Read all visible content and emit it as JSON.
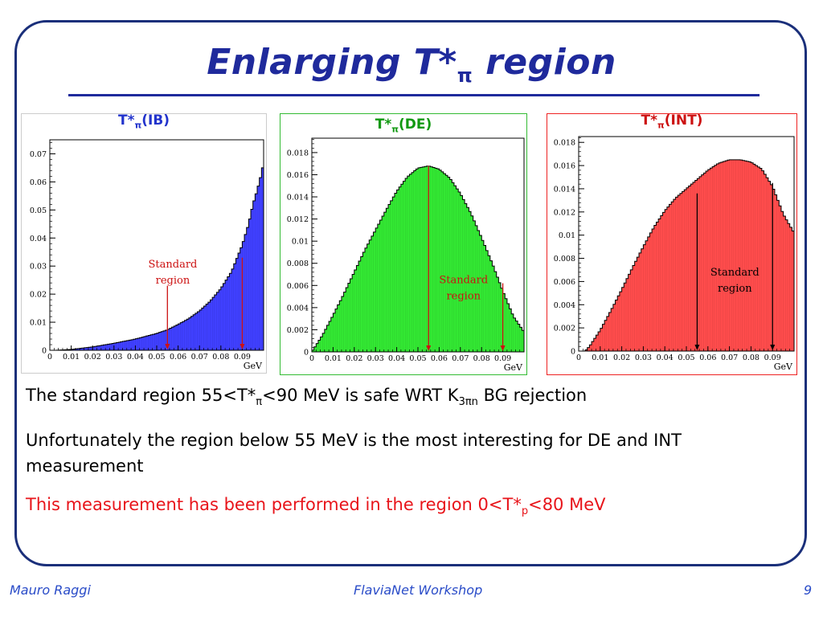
{
  "slide": {
    "title_main": "Enlarging T*",
    "title_sub": "π",
    "title_end": " region",
    "bullet1": {
      "a": "The standard region 55<T*",
      "sub": "π",
      "b": "<90 MeV is safe WRT K",
      "k_sub": "3πn",
      "c": " BG rejection"
    },
    "bullet2": "Unfortunately the region below 55 MeV is the most interesting for DE and INT measurement",
    "bullet3": {
      "a": "This measurement has been performed in the region 0<T*",
      "sub": "p",
      "b": "<80 MeV"
    },
    "footer_left": "Mauro Raggi",
    "footer_center": "FlaviaNet Workshop",
    "footer_right": "9"
  },
  "colors": {
    "accent": "#1f2a9c",
    "ib": "#4040ff",
    "de": "#33e833",
    "int": "#ff4c4c",
    "arrow": "#cc1111",
    "red_text": "#e8141a"
  },
  "chart_data": [
    {
      "type": "bar",
      "title": {
        "base": "T*",
        "sub": "π",
        "label": "(IB)"
      },
      "title_color": "#2233cc",
      "xlabel": "GeV",
      "xlim": [
        0,
        0.1
      ],
      "ylim": [
        0,
        0.075
      ],
      "xticks": [
        0,
        0.01,
        0.02,
        0.03,
        0.04,
        0.05,
        0.06,
        0.07,
        0.08,
        0.09
      ],
      "xtick_labels": [
        "0",
        "0.01",
        "0.02",
        "0.03",
        "0.04",
        "0.05",
        "0.06",
        "0.07",
        "0.08",
        "0.09"
      ],
      "yticks": [
        0,
        0.01,
        0.02,
        0.03,
        0.04,
        0.05,
        0.06,
        0.07
      ],
      "ytick_labels": [
        "0",
        "0.01",
        "0.02",
        "0.03",
        "0.04",
        "0.05",
        "0.06",
        "0.07"
      ],
      "curve_x": [
        0.003,
        0.01,
        0.02,
        0.03,
        0.04,
        0.05,
        0.055,
        0.06,
        0.065,
        0.07,
        0.075,
        0.08,
        0.085,
        0.09,
        0.093,
        0.095,
        0.097,
        0.099,
        0.1
      ],
      "curve_y": [
        0.0,
        0.0003,
        0.0012,
        0.0025,
        0.004,
        0.006,
        0.0073,
        0.0092,
        0.0113,
        0.014,
        0.0175,
        0.022,
        0.028,
        0.0375,
        0.045,
        0.052,
        0.057,
        0.063,
        0.067
      ],
      "bar_color": "#4040ff",
      "annotation": {
        "text": [
          "Standard",
          "region"
        ],
        "color": "#cc1111"
      },
      "label_pos": [
        0.0575,
        0.0295
      ],
      "arrows": [
        {
          "x": 0.055,
          "from": 0.023,
          "to": 0.0
        },
        {
          "x": 0.09,
          "from": 0.033,
          "to": 0.0
        }
      ],
      "arrow_color": "#cc1111"
    },
    {
      "type": "bar",
      "title": {
        "base": "T*",
        "sub": "π",
        "label": "(DE)"
      },
      "title_color": "#119911",
      "xlabel": "GeV",
      "xlim": [
        0,
        0.1
      ],
      "ylim": [
        0,
        0.0193
      ],
      "xticks": [
        0,
        0.01,
        0.02,
        0.03,
        0.04,
        0.05,
        0.06,
        0.07,
        0.08,
        0.09
      ],
      "xtick_labels": [
        "0",
        "0.01",
        "0.02",
        "0.03",
        "0.04",
        "0.05",
        "0.06",
        "0.07",
        "0.08",
        "0.09"
      ],
      "yticks": [
        0,
        0.002,
        0.004,
        0.006,
        0.008,
        0.01,
        0.012,
        0.014,
        0.016,
        0.018
      ],
      "ytick_labels": [
        "0",
        "0.002",
        "0.004",
        "0.006",
        "0.008",
        "0.01",
        "0.012",
        "0.014",
        "0.016",
        "0.018"
      ],
      "curve_x": [
        0.0,
        0.005,
        0.01,
        0.015,
        0.02,
        0.025,
        0.03,
        0.035,
        0.04,
        0.045,
        0.05,
        0.055,
        0.06,
        0.065,
        0.07,
        0.075,
        0.08,
        0.085,
        0.09,
        0.095,
        0.1
      ],
      "curve_y": [
        0.0,
        0.0015,
        0.0033,
        0.0052,
        0.0072,
        0.0092,
        0.011,
        0.0128,
        0.0145,
        0.0158,
        0.0166,
        0.0168,
        0.0165,
        0.0157,
        0.0143,
        0.0125,
        0.0103,
        0.008,
        0.0055,
        0.0032,
        0.0018
      ],
      "bar_color": "#33e833",
      "annotation": {
        "text": [
          "Standard",
          "region"
        ],
        "color": "#cc1111"
      },
      "label_pos": [
        0.0715,
        0.0062
      ],
      "arrows": [
        {
          "x": 0.055,
          "from": 0.0168,
          "to": 0.0
        },
        {
          "x": 0.09,
          "from": 0.0062,
          "to": 0.0
        }
      ],
      "arrow_color": "#cc1111"
    },
    {
      "type": "bar",
      "title": {
        "base": "T*",
        "sub": "π",
        "label": "(INT)"
      },
      "title_color": "#cc1111",
      "xlabel": "GeV",
      "xlim": [
        0,
        0.1
      ],
      "ylim": [
        0,
        0.0185
      ],
      "xticks": [
        0,
        0.01,
        0.02,
        0.03,
        0.04,
        0.05,
        0.06,
        0.07,
        0.08,
        0.09
      ],
      "xtick_labels": [
        "0",
        "0.01",
        "0.02",
        "0.03",
        "0.04",
        "0.05",
        "0.06",
        "0.07",
        "0.08",
        "0.09"
      ],
      "yticks": [
        0,
        0.002,
        0.004,
        0.006,
        0.008,
        0.01,
        0.012,
        0.014,
        0.016,
        0.018
      ],
      "ytick_labels": [
        "0",
        "0.002",
        "0.004",
        "0.006",
        "0.008",
        "0.01",
        "0.012",
        "0.014",
        "0.016",
        "0.018"
      ],
      "curve_x": [
        0.003,
        0.005,
        0.01,
        0.015,
        0.02,
        0.025,
        0.03,
        0.035,
        0.04,
        0.045,
        0.05,
        0.055,
        0.06,
        0.065,
        0.07,
        0.075,
        0.08,
        0.085,
        0.09,
        0.095,
        0.1
      ],
      "curve_y": [
        0.0,
        0.0004,
        0.0018,
        0.0035,
        0.0053,
        0.0072,
        0.009,
        0.0107,
        0.0121,
        0.0132,
        0.014,
        0.0148,
        0.0156,
        0.0162,
        0.0165,
        0.0165,
        0.0163,
        0.0157,
        0.0142,
        0.0118,
        0.0102
      ],
      "bar_color": "#ff4c4c",
      "annotation": {
        "text": [
          "Standard",
          "region"
        ],
        "color": "#000000"
      },
      "label_pos": [
        0.0725,
        0.0065
      ],
      "arrows": [
        {
          "x": 0.055,
          "from": 0.0136,
          "to": 0.0
        },
        {
          "x": 0.09,
          "from": 0.0145,
          "to": 0.0
        }
      ],
      "arrow_color": "#000000"
    }
  ]
}
